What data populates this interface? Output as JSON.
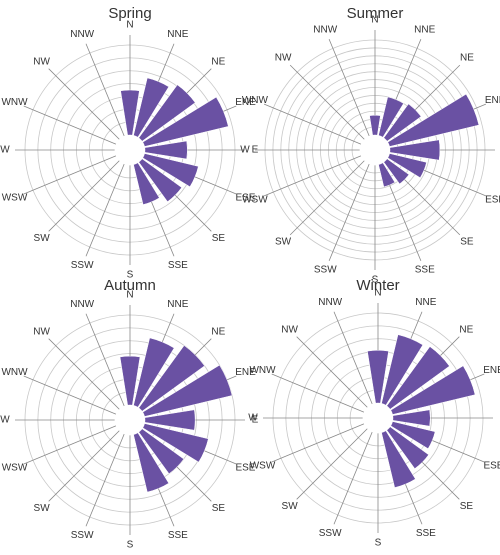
{
  "chart_data": [
    {
      "type": "rose",
      "title": "Spring",
      "categories": [
        "N",
        "NNE",
        "NE",
        "ENE",
        "E",
        "ESE",
        "SE",
        "SSE",
        "S",
        "SSW",
        "SW",
        "WSW",
        "W",
        "WNW",
        "NW",
        "NNW"
      ],
      "values": [
        3.5,
        4.6,
        5.1,
        6.7,
        3.3,
        4.3,
        3.8,
        3.2,
        0,
        0,
        0,
        0,
        0,
        0,
        0,
        0
      ],
      "color": "#6a51a3",
      "rlim": [
        0,
        7
      ],
      "rticks": [
        1,
        2,
        3,
        4,
        5,
        6,
        7
      ]
    },
    {
      "type": "rose",
      "title": "Summer",
      "categories": [
        "N",
        "NNE",
        "NE",
        "ENE",
        "E",
        "ESE",
        "SE",
        "SSE",
        "S",
        "SSW",
        "SW",
        "WSW",
        "W",
        "WNW",
        "NW",
        "NNW"
      ],
      "values": [
        2.5,
        5,
        5.3,
        11.6,
        6.3,
        4.8,
        3.4,
        2.9,
        0,
        0,
        0,
        0,
        0,
        0,
        0,
        0
      ],
      "color": "#6a51a3",
      "rlim": [
        0,
        12
      ],
      "rticks": [
        1,
        2,
        3,
        4,
        5,
        6,
        7,
        8,
        9,
        10,
        11,
        12
      ]
    },
    {
      "type": "rose",
      "title": "Autumn",
      "categories": [
        "N",
        "NNE",
        "NE",
        "ENE",
        "E",
        "ESE",
        "SE",
        "SSE",
        "S",
        "SSW",
        "SW",
        "WSW",
        "W",
        "WNW",
        "NW",
        "NNW"
      ],
      "values": [
        3.8,
        5.4,
        6,
        7,
        3.9,
        5.1,
        4,
        4.6,
        0,
        0,
        0,
        0,
        0,
        0,
        0,
        0
      ],
      "color": "#6a51a3",
      "rlim": [
        0,
        7
      ],
      "rticks": [
        1,
        2,
        3,
        4,
        5,
        6,
        7
      ]
    },
    {
      "type": "rose",
      "title": "Winter",
      "categories": [
        "N",
        "NNE",
        "NE",
        "ENE",
        "E",
        "ESE",
        "SE",
        "SSE",
        "S",
        "SSW",
        "SW",
        "WSW",
        "W",
        "WNW",
        "NW",
        "NNW"
      ],
      "values": [
        4.1,
        5.5,
        5.7,
        6.6,
        2.9,
        3.4,
        3.7,
        4.4,
        0,
        0,
        0,
        0,
        0,
        0,
        0,
        0
      ],
      "color": "#6a51a3",
      "rlim": [
        0,
        7
      ],
      "rticks": [
        1,
        2,
        3,
        4,
        5,
        6,
        7
      ]
    }
  ]
}
